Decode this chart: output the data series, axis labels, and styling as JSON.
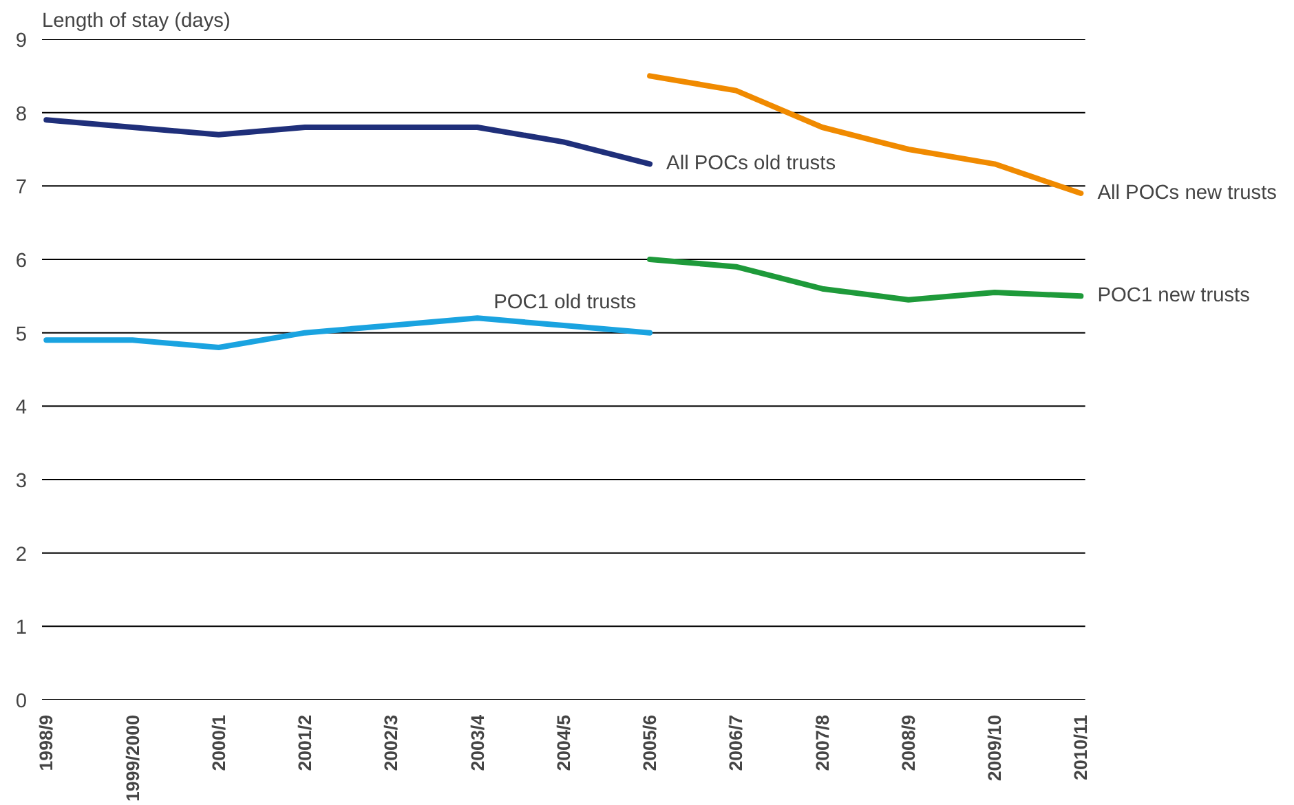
{
  "chart_data": {
    "type": "line",
    "ylabel": "Length of stay (days)",
    "categories": [
      "1998/9",
      "1999/2000",
      "2000/1",
      "2001/2",
      "2002/3",
      "2003/4",
      "2004/5",
      "2005/6",
      "2006/7",
      "2007/8",
      "2008/9",
      "2009/10",
      "2010/11"
    ],
    "series": [
      {
        "name": "All POCs old trusts",
        "color": "#1f2f7a",
        "values": [
          7.9,
          7.8,
          7.7,
          7.8,
          7.8,
          7.8,
          7.6,
          7.3,
          null,
          null,
          null,
          null,
          null
        ]
      },
      {
        "name": "POC1 old trusts",
        "color": "#1aa3e0",
        "values": [
          4.9,
          4.9,
          4.8,
          5.0,
          5.1,
          5.2,
          5.1,
          5.0,
          null,
          null,
          null,
          null,
          null
        ]
      },
      {
        "name": "All POCs new trusts",
        "color": "#f08a00",
        "values": [
          null,
          null,
          null,
          null,
          null,
          null,
          null,
          8.5,
          8.3,
          7.8,
          7.5,
          7.3,
          6.9
        ]
      },
      {
        "name": "POC1 new trusts",
        "color": "#1e9a3a",
        "values": [
          null,
          null,
          null,
          null,
          null,
          null,
          null,
          6.0,
          5.9,
          5.6,
          5.45,
          5.55,
          5.5
        ]
      }
    ],
    "ylim": [
      0,
      9
    ],
    "yticks": [
      0,
      1,
      2,
      3,
      4,
      5,
      6,
      7,
      8,
      9
    ],
    "grid": "y",
    "marker": "none",
    "line_style": "solid"
  }
}
